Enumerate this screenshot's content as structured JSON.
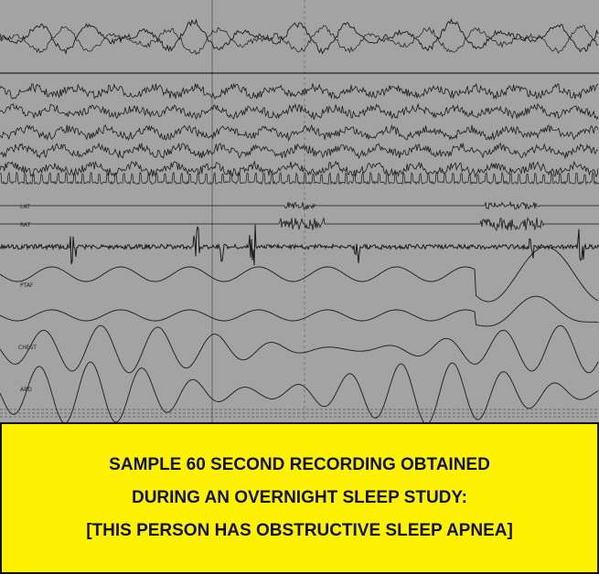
{
  "recording": {
    "channel_labels": [
      "LAT",
      "RAT",
      "PTAF",
      "CHEST",
      "ABD"
    ]
  },
  "caption": {
    "lines": [
      "SAMPLE 60 SECOND RECORDING OBTAINED",
      "DURING AN OVERNIGHT SLEEP STUDY:",
      "[THIS PERSON HAS OBSTRUCTIVE SLEEP APNEA]"
    ]
  }
}
